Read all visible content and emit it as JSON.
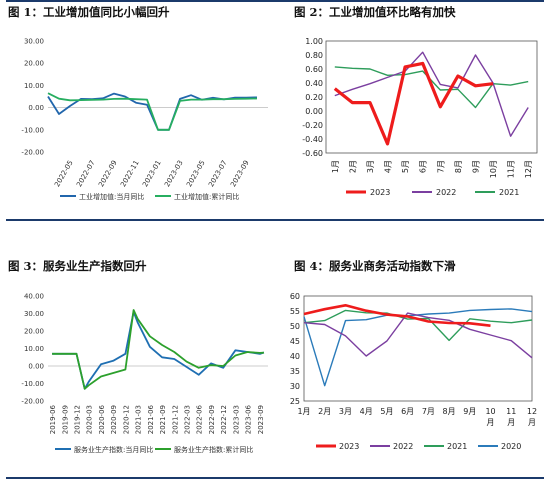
{
  "panels": {
    "p1": {
      "title": "图 1：工业增加值同比小幅回升"
    },
    "p2": {
      "title": "图 2：工业增加值环比略有加快"
    },
    "p3": {
      "title": "图 3：服务业生产指数回升"
    },
    "p4": {
      "title": "图 4：服务业商务活动指数下滑"
    }
  },
  "chart_data": [
    {
      "type": "line",
      "title": "图 1：工业增加值同比小幅回升",
      "ylim": [
        -20,
        30
      ],
      "yticks": [
        "30.00",
        "20.00",
        "10.00",
        "0.00",
        "-10.00",
        "-20.00"
      ],
      "x_tick_labels": [
        "2022-05",
        "2022-07",
        "2022-09",
        "2022-11",
        "2023-01",
        "2023-03",
        "2023-05",
        "2023-07",
        "2023-09"
      ],
      "x": [
        "2022-03",
        "2022-04",
        "2022-05",
        "2022-06",
        "2022-07",
        "2022-08",
        "2022-09",
        "2022-10",
        "2022-11",
        "2022-12",
        "2023-01",
        "2023-02",
        "2023-03",
        "2023-04",
        "2023-05",
        "2023-06",
        "2023-07",
        "2023-08",
        "2023-09",
        "2023-10"
      ],
      "series": [
        {
          "name": "工业增加值:当月同比",
          "color": "#2166ac",
          "values": [
            5.0,
            -2.9,
            0.7,
            3.9,
            3.8,
            4.2,
            6.3,
            5.0,
            2.2,
            1.3,
            -10.0,
            -10.0,
            3.9,
            5.6,
            3.5,
            4.4,
            3.7,
            4.5,
            4.5,
            4.6
          ]
        },
        {
          "name": "工业增加值:累计同比",
          "color": "#27ae60",
          "values": [
            6.5,
            4.0,
            3.3,
            3.4,
            3.5,
            3.6,
            3.9,
            4.0,
            3.8,
            3.6,
            -10.0,
            -10.0,
            3.0,
            3.6,
            3.6,
            3.8,
            3.8,
            3.9,
            4.0,
            4.1
          ]
        }
      ]
    },
    {
      "type": "line",
      "title": "图 2：工业增加值环比略有加快",
      "ylim": [
        -0.6,
        1.0
      ],
      "yticks": [
        "1.00",
        "0.80",
        "0.60",
        "0.40",
        "0.20",
        "0.00",
        "-0.20",
        "-0.40",
        "-0.60"
      ],
      "categories": [
        "1月",
        "2月",
        "3月",
        "4月",
        "5月",
        "6月",
        "7月",
        "8月",
        "9月",
        "10月",
        "11月",
        "12月"
      ],
      "series": [
        {
          "name": "2023",
          "color": "#ee1c1c",
          "values": [
            0.32,
            0.12,
            0.12,
            -0.47,
            0.63,
            0.68,
            0.06,
            0.5,
            0.36,
            0.39,
            null,
            null
          ]
        },
        {
          "name": "2022",
          "color": "#7b3fa0",
          "values": [
            0.22,
            0.31,
            0.39,
            0.48,
            0.57,
            0.84,
            0.38,
            0.33,
            0.8,
            0.4,
            -0.36,
            0.05
          ]
        },
        {
          "name": "2021",
          "color": "#2e9d5b",
          "values": [
            0.63,
            0.61,
            0.6,
            0.51,
            0.52,
            0.57,
            0.3,
            0.31,
            0.05,
            0.39,
            0.37,
            0.42
          ]
        }
      ]
    },
    {
      "type": "line",
      "title": "图 3：服务业生产指数回升",
      "ylim": [
        -20,
        40
      ],
      "yticks": [
        "40.00",
        "30.00",
        "20.00",
        "10.00",
        "0.00",
        "-10.00",
        "-20.00"
      ],
      "x_tick_labels": [
        "2019-06",
        "2019-09",
        "2019-12",
        "2020-03",
        "2020-06",
        "2020-09",
        "2020-12",
        "2021-03",
        "2021-06",
        "2021-09",
        "2021-12",
        "2022-03",
        "2022-06",
        "2022-09",
        "2022-12",
        "2023-03",
        "2023-06",
        "2023-09"
      ],
      "x": [
        "2019-06",
        "2019-09",
        "2019-12",
        "2020-02",
        "2020-03",
        "2020-06",
        "2020-09",
        "2020-12",
        "2021-02",
        "2021-03",
        "2021-06",
        "2021-09",
        "2021-12",
        "2022-03",
        "2022-06",
        "2022-09",
        "2022-12",
        "2023-03",
        "2023-06",
        "2023-09",
        "2023-10"
      ],
      "series": [
        {
          "name": "服务业生产指数:当月同比",
          "color": "#1f6fb2",
          "values": [
            7.0,
            7.0,
            7.0,
            -13.0,
            -9.0,
            1.0,
            3.0,
            7.0,
            31.0,
            25.0,
            11.0,
            5.0,
            4.0,
            -0.5,
            -5.0,
            1.5,
            -1.0,
            9.0,
            8.0,
            6.9,
            7.7
          ]
        },
        {
          "name": "服务业生产指数:累计同比",
          "color": "#2ca02c",
          "values": [
            7.0,
            7.0,
            7.0,
            -13.0,
            -11.0,
            -6.0,
            -4.0,
            -2.0,
            32.0,
            27.0,
            17.0,
            12.0,
            8.0,
            2.5,
            -1.0,
            0.5,
            0.0,
            6.0,
            8.0,
            7.5,
            7.6
          ]
        }
      ]
    },
    {
      "type": "line",
      "title": "图 4：服务业商务活动指数下滑",
      "ylim": [
        25,
        60
      ],
      "yticks": [
        "60",
        "55",
        "50",
        "45",
        "40",
        "35",
        "30",
        "25"
      ],
      "categories": [
        "1月",
        "2月",
        "3月",
        "4月",
        "5月",
        "6月",
        "7月",
        "8月",
        "9月",
        "10月",
        "11月",
        "12月"
      ],
      "x_tick_labels": [
        "1月",
        "2月",
        "3月",
        "4月",
        "5月",
        "6月",
        "7月",
        "8月",
        "9月",
        "10\n月",
        "11\n月",
        "12\n月"
      ],
      "series": [
        {
          "name": "2023",
          "color": "#ee1c1c",
          "values": [
            54.0,
            55.6,
            56.9,
            55.1,
            53.8,
            53.2,
            51.5,
            51.0,
            50.9,
            50.1,
            null,
            null
          ]
        },
        {
          "name": "2022",
          "color": "#7b3fa0",
          "values": [
            51.1,
            50.5,
            46.7,
            40.0,
            45.0,
            54.3,
            52.8,
            51.9,
            48.9,
            47.0,
            45.1,
            39.4
          ]
        },
        {
          "name": "2021",
          "color": "#2e9d5b",
          "values": [
            51.1,
            51.8,
            55.2,
            54.4,
            54.3,
            52.3,
            52.5,
            45.2,
            52.4,
            51.6,
            51.1,
            52.0
          ]
        },
        {
          "name": "2020",
          "color": "#2b7bba",
          "values": [
            53.1,
            30.1,
            51.8,
            52.1,
            53.6,
            53.4,
            54.0,
            54.3,
            55.2,
            55.5,
            55.7,
            54.8
          ]
        }
      ]
    }
  ]
}
